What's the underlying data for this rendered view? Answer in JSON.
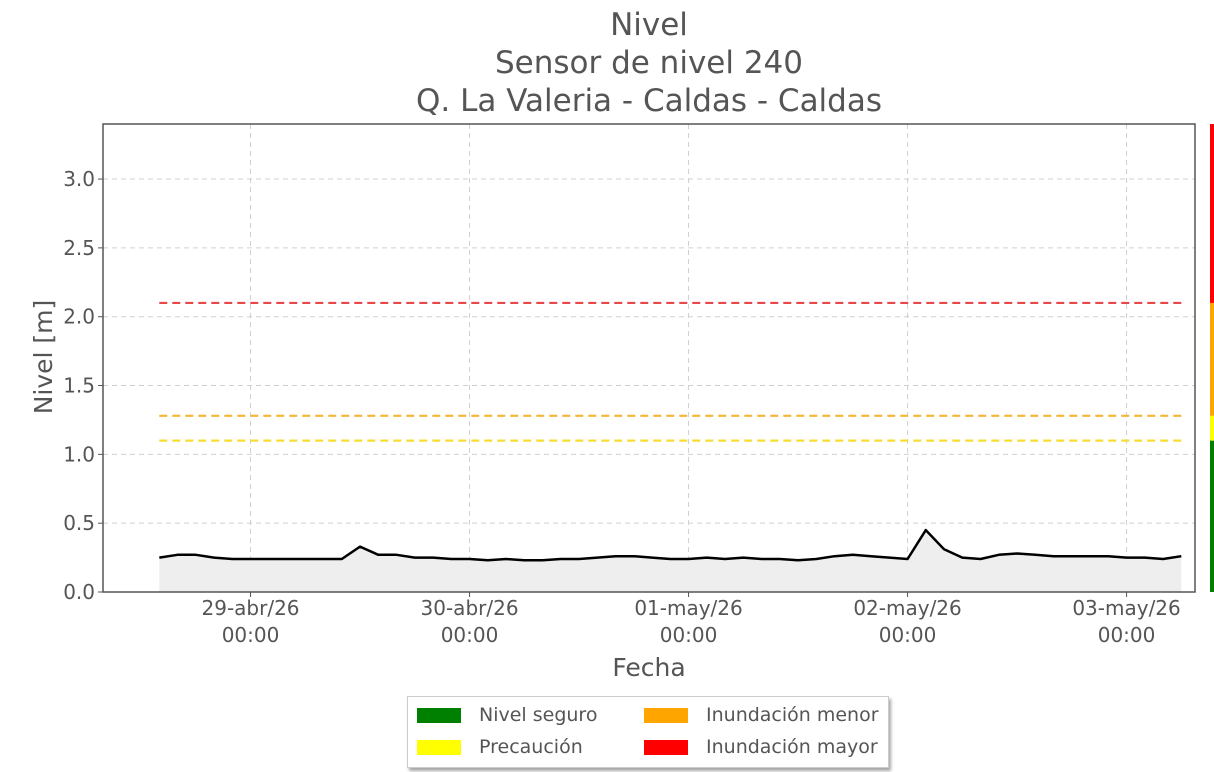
{
  "chart_data": {
    "type": "area",
    "title_lines": [
      "Nivel",
      "Sensor de nivel 240",
      "Q. La Valeria - Caldas - Caldas"
    ],
    "xlabel": "Fecha",
    "ylabel": "Nivel [m]",
    "ylim": [
      0,
      3.4
    ],
    "yticks": [
      0.0,
      0.5,
      1.0,
      1.5,
      2.0,
      2.5,
      3.0
    ],
    "ytick_labels": [
      "0.0",
      "0.5",
      "1.0",
      "1.5",
      "2.0",
      "2.5",
      "3.0"
    ],
    "xlim": [
      "2026-04-28 07:50",
      "2026-05-03 07:30"
    ],
    "xticks": [
      "2026-04-29 00:00",
      "2026-04-30 00:00",
      "2026-05-01 00:00",
      "2026-05-02 00:00",
      "2026-05-03 00:00"
    ],
    "xtick_labels": [
      {
        "date": "29-abr/26",
        "time": "00:00"
      },
      {
        "date": "30-abr/26",
        "time": "00:00"
      },
      {
        "date": "01-may/26",
        "time": "00:00"
      },
      {
        "date": "02-may/26",
        "time": "00:00"
      },
      {
        "date": "03-may/26",
        "time": "00:00"
      }
    ],
    "grid": true,
    "legend_position": "bottom-center",
    "series": [
      {
        "color": "#000000",
        "fill": "#eeeeee",
        "x": [
          "2026-04-28 14:00",
          "2026-04-28 16:00",
          "2026-04-28 18:00",
          "2026-04-28 20:00",
          "2026-04-28 22:00",
          "2026-04-29 00:00",
          "2026-04-29 02:00",
          "2026-04-29 04:00",
          "2026-04-29 06:00",
          "2026-04-29 08:00",
          "2026-04-29 10:00",
          "2026-04-29 12:00",
          "2026-04-29 14:00",
          "2026-04-29 16:00",
          "2026-04-29 18:00",
          "2026-04-29 20:00",
          "2026-04-29 22:00",
          "2026-04-30 00:00",
          "2026-04-30 02:00",
          "2026-04-30 04:00",
          "2026-04-30 06:00",
          "2026-04-30 08:00",
          "2026-04-30 10:00",
          "2026-04-30 12:00",
          "2026-04-30 14:00",
          "2026-04-30 16:00",
          "2026-04-30 18:00",
          "2026-04-30 20:00",
          "2026-04-30 22:00",
          "2026-05-01 00:00",
          "2026-05-01 02:00",
          "2026-05-01 04:00",
          "2026-05-01 06:00",
          "2026-05-01 08:00",
          "2026-05-01 10:00",
          "2026-05-01 12:00",
          "2026-05-01 14:00",
          "2026-05-01 16:00",
          "2026-05-01 18:00",
          "2026-05-01 20:00",
          "2026-05-01 22:00",
          "2026-05-02 00:00",
          "2026-05-02 02:00",
          "2026-05-02 04:00",
          "2026-05-02 06:00",
          "2026-05-02 08:00",
          "2026-05-02 10:00",
          "2026-05-02 12:00",
          "2026-05-02 14:00",
          "2026-05-02 16:00",
          "2026-05-02 18:00",
          "2026-05-02 20:00",
          "2026-05-02 22:00",
          "2026-05-03 00:00",
          "2026-05-03 02:00",
          "2026-05-03 04:00",
          "2026-05-03 06:00"
        ],
        "y": [
          0.25,
          0.27,
          0.27,
          0.25,
          0.24,
          0.24,
          0.24,
          0.24,
          0.24,
          0.24,
          0.24,
          0.33,
          0.27,
          0.27,
          0.25,
          0.25,
          0.24,
          0.24,
          0.23,
          0.24,
          0.23,
          0.23,
          0.24,
          0.24,
          0.25,
          0.26,
          0.26,
          0.25,
          0.24,
          0.24,
          0.25,
          0.24,
          0.25,
          0.24,
          0.24,
          0.23,
          0.24,
          0.26,
          0.27,
          0.26,
          0.25,
          0.24,
          0.45,
          0.31,
          0.25,
          0.24,
          0.27,
          0.28,
          0.27,
          0.26,
          0.26,
          0.26,
          0.26,
          0.25,
          0.25,
          0.24,
          0.26
        ]
      }
    ],
    "thresholds": [
      {
        "label": "Inundación mayor",
        "value": 2.1,
        "color": "#e8474b"
      },
      {
        "label": "Inundación menor",
        "value": 1.28,
        "color": "#f5b638"
      },
      {
        "label": "Precaución",
        "value": 1.1,
        "color": "#f5de34"
      }
    ],
    "legend": [
      {
        "label": "Nivel seguro",
        "color": "#008000"
      },
      {
        "label": "Inundación menor",
        "color": "#ffa500"
      },
      {
        "label": "Precaución",
        "color": "#ffff00"
      },
      {
        "label": "Inundación mayor",
        "color": "#ff0000"
      }
    ],
    "side_bar": [
      {
        "from": 0,
        "to": 1.1,
        "color": "#008000"
      },
      {
        "from": 1.1,
        "to": 1.28,
        "color": "#ffff00"
      },
      {
        "from": 1.28,
        "to": 2.1,
        "color": "#ffa500"
      },
      {
        "from": 2.1,
        "to": 3.4,
        "color": "#ff0000"
      }
    ]
  }
}
